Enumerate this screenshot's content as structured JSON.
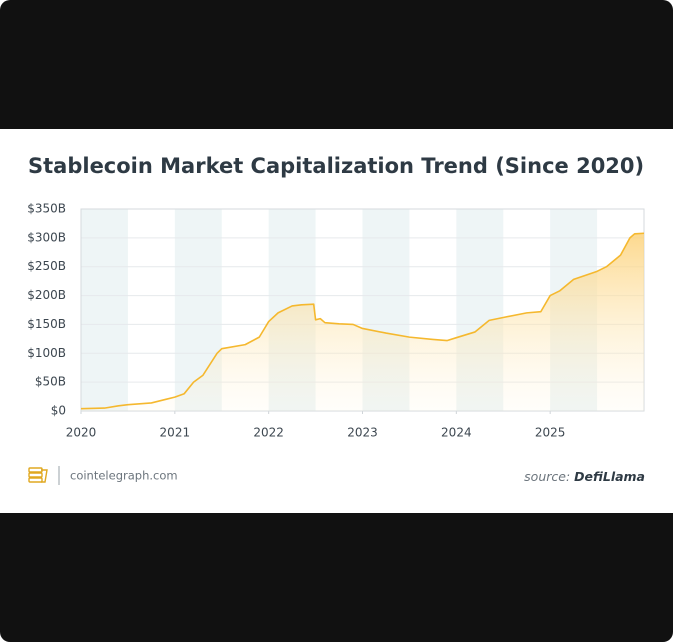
{
  "chart_data": {
    "type": "area",
    "title": "Stablecoin Market Capitalization Trend (Since 2020)",
    "site": "cointelegraph.com",
    "source_label": "source:",
    "source_name": "DefiLlama",
    "color": "#f5b82e",
    "grid": true,
    "xlim": [
      2020,
      2026
    ],
    "xticks": [
      2020,
      2021,
      2022,
      2023,
      2024,
      2025
    ],
    "ylim": [
      0,
      350
    ],
    "yticks": [
      {
        "value": 0,
        "label": "$0"
      },
      {
        "value": 50,
        "label": "$50B"
      },
      {
        "value": 100,
        "label": "$100B"
      },
      {
        "value": 150,
        "label": "$150B"
      },
      {
        "value": 200,
        "label": "$200B"
      },
      {
        "value": 250,
        "label": "$250B"
      },
      {
        "value": 300,
        "label": "$300B"
      },
      {
        "value": 350,
        "label": "$350B"
      }
    ],
    "x": [
      2020.0,
      2020.25,
      2020.4,
      2020.5,
      2020.75,
      2020.9,
      2021.0,
      2021.1,
      2021.2,
      2021.3,
      2021.45,
      2021.5,
      2021.75,
      2021.9,
      2022.0,
      2022.1,
      2022.25,
      2022.35,
      2022.48,
      2022.5,
      2022.55,
      2022.6,
      2022.75,
      2022.9,
      2023.0,
      2023.25,
      2023.5,
      2023.75,
      2023.9,
      2024.0,
      2024.2,
      2024.35,
      2024.5,
      2024.75,
      2024.9,
      2025.0,
      2025.1,
      2025.25,
      2025.5,
      2025.6,
      2025.75,
      2025.85,
      2025.9,
      2026.0
    ],
    "values": [
      4,
      5,
      9,
      11,
      14,
      20,
      24,
      30,
      50,
      62,
      100,
      108,
      115,
      128,
      155,
      170,
      182,
      184,
      185,
      158,
      160,
      153,
      151,
      150,
      143,
      135,
      128,
      124,
      122,
      127,
      137,
      157,
      162,
      170,
      172,
      200,
      208,
      228,
      242,
      250,
      270,
      300,
      307,
      308
    ]
  }
}
